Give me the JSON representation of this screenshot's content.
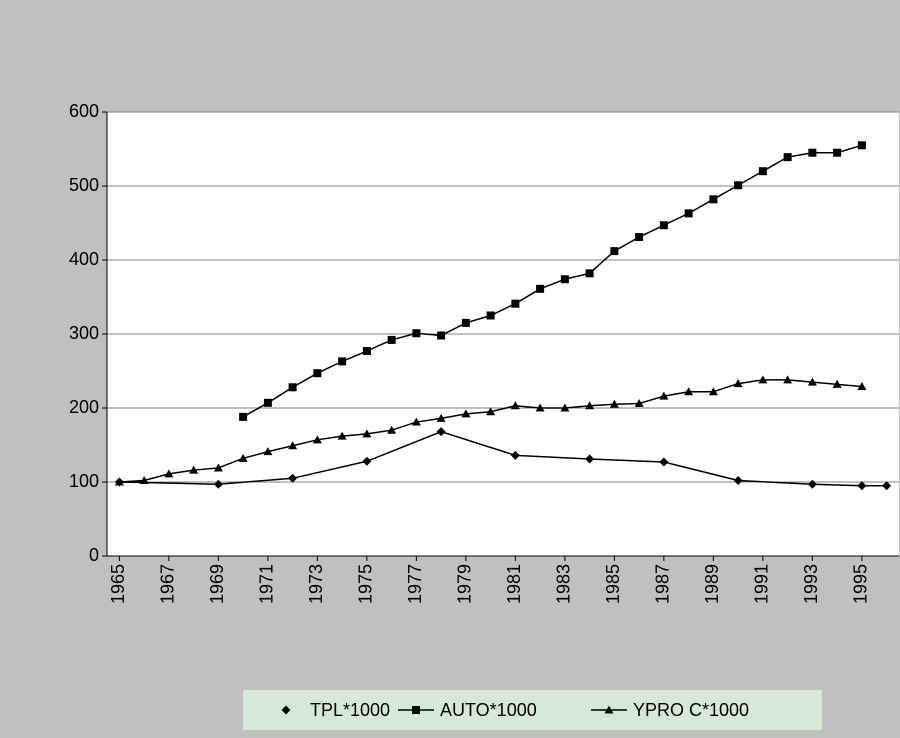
{
  "chart_data": {
    "type": "line",
    "xlim": [
      1964.5,
      1996.5
    ],
    "xticks": [
      1965,
      1967,
      1969,
      1971,
      1973,
      1975,
      1977,
      1979,
      1981,
      1983,
      1985,
      1987,
      1989,
      1991,
      1993,
      1995
    ],
    "ylim": [
      0,
      600
    ],
    "yticks": [
      0,
      100,
      200,
      300,
      400,
      500,
      600
    ],
    "grid": true,
    "legend": "bottom",
    "series": [
      {
        "name": "TPL*1000",
        "color": "#000000",
        "marker": "diamond",
        "x": [
          1965,
          1969,
          1972,
          1975,
          1978,
          1981,
          1984,
          1987,
          1990,
          1993,
          1995,
          1996
        ],
        "values": [
          100,
          97,
          105,
          128,
          168,
          136,
          131,
          127,
          102,
          97,
          95,
          95
        ]
      },
      {
        "name": "AUTO*1000",
        "color": "#000000",
        "marker": "square",
        "x": [
          1970,
          1971,
          1972,
          1973,
          1974,
          1975,
          1976,
          1977,
          1978,
          1979,
          1980,
          1981,
          1982,
          1983,
          1984,
          1985,
          1986,
          1987,
          1988,
          1989,
          1990,
          1991,
          1992,
          1993,
          1994,
          1995
        ],
        "values": [
          188,
          207,
          228,
          247,
          263,
          277,
          292,
          301,
          298,
          315,
          325,
          341,
          361,
          374,
          382,
          412,
          431,
          447,
          463,
          482,
          501,
          520,
          539,
          545,
          545,
          555
        ]
      },
      {
        "name": "YPRO C*1000",
        "color": "#000000",
        "marker": "triangle",
        "x": [
          1965,
          1966,
          1967,
          1968,
          1969,
          1970,
          1971,
          1972,
          1973,
          1974,
          1975,
          1976,
          1977,
          1978,
          1979,
          1980,
          1981,
          1982,
          1983,
          1984,
          1985,
          1986,
          1987,
          1988,
          1989,
          1990,
          1991,
          1992,
          1993,
          1994,
          1995
        ],
        "values": [
          100,
          102,
          111,
          116,
          119,
          132,
          141,
          149,
          157,
          162,
          165,
          170,
          181,
          186,
          192,
          195,
          203,
          200,
          200,
          203,
          205,
          206,
          216,
          222,
          222,
          233,
          238,
          238,
          235,
          232,
          229
        ]
      }
    ]
  }
}
